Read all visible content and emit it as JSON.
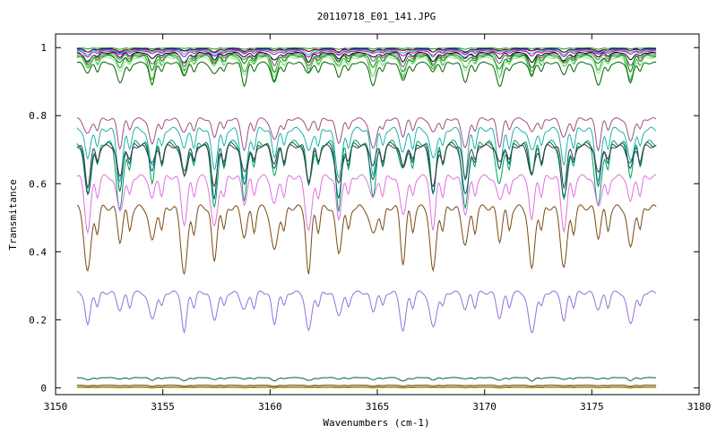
{
  "chart_data": {
    "type": "line",
    "title": "20110718_E01_141.JPG",
    "xlabel": "Wavenumbers (cm-1)",
    "ylabel": "Transmitance",
    "xlim": [
      3150,
      3180
    ],
    "ylim": [
      -0.02,
      1.04
    ],
    "xticks": [
      3150,
      3155,
      3160,
      3165,
      3170,
      3175,
      3180
    ],
    "yticks": [
      0,
      0.2,
      0.4,
      0.6,
      0.8,
      1
    ],
    "ytick_labels": [
      "0",
      "0.2",
      "0.4",
      "0.6",
      "0.8",
      "1"
    ],
    "x_range": [
      3151,
      3178
    ],
    "line_positions": [
      3151.5,
      3153,
      3154.5,
      3156,
      3157.4,
      3158.8,
      3160.2,
      3161.8,
      3163.2,
      3164.8,
      3166.2,
      3167.6,
      3169.1,
      3170.7,
      3172.2,
      3173.7,
      3175.3,
      3176.8
    ],
    "legend": "none",
    "grid": false,
    "series": [
      {
        "color": "#00a000",
        "base": 0.999,
        "depth": 0.004
      },
      {
        "color": "#0000ff",
        "base": 0.997,
        "depth": 0.012
      },
      {
        "color": "#c00000",
        "base": 0.995,
        "depth": 0.008
      },
      {
        "color": "#00c0c0",
        "base": 0.993,
        "depth": 0.015
      },
      {
        "color": "#c000c0",
        "base": 0.99,
        "depth": 0.018
      },
      {
        "color": "#000000",
        "base": 0.985,
        "depth": 0.03
      },
      {
        "color": "#606060",
        "base": 0.982,
        "depth": 0.04
      },
      {
        "color": "#008000",
        "base": 0.978,
        "depth": 0.05
      },
      {
        "color": "#22aa22",
        "base": 0.975,
        "depth": 0.07
      },
      {
        "color": "#90e090",
        "base": 0.97,
        "depth": 0.06
      },
      {
        "color": "#006400",
        "base": 0.955,
        "depth": 0.07
      },
      {
        "color": "#a05080",
        "base": 0.79,
        "depth": 0.09
      },
      {
        "color": "#20b0b0",
        "base": 0.76,
        "depth": 0.15
      },
      {
        "color": "#00a060",
        "base": 0.72,
        "depth": 0.2
      },
      {
        "color": "#006060",
        "base": 0.715,
        "depth": 0.16
      },
      {
        "color": "#404040",
        "base": 0.71,
        "depth": 0.12
      },
      {
        "color": "#e070e0",
        "base": 0.62,
        "depth": 0.16
      },
      {
        "color": "#7a4a10",
        "base": 0.53,
        "depth": 0.2
      },
      {
        "color": "#9370db",
        "base": 0.28,
        "depth": 0.12
      },
      {
        "color": "#006040",
        "base": 0.03,
        "depth": 0.01
      },
      {
        "color": "#8b4513",
        "base": 0.008,
        "depth": 0.003
      },
      {
        "color": "#404040",
        "base": 0.003,
        "depth": 0.002
      },
      {
        "color": "#e0e000",
        "base": 0.0,
        "depth": 0.002
      }
    ]
  }
}
